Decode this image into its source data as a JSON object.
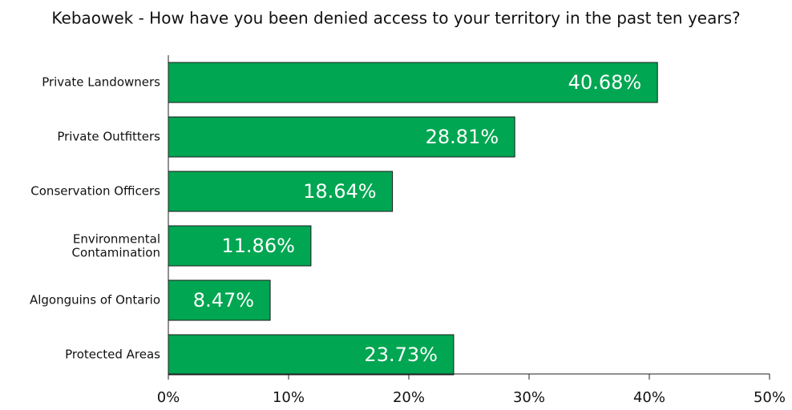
{
  "chart_data": {
    "type": "bar",
    "orientation": "horizontal",
    "title": "Kebaowek - How have you been denied access to your territory in the past ten years?",
    "categories": [
      "Private Landowners",
      "Private Outfitters",
      "Conservation Officers",
      "Environmental\nContamination",
      "Algonguins of Ontario",
      "Protected Areas"
    ],
    "values": [
      40.68,
      28.81,
      18.64,
      11.86,
      8.47,
      23.73
    ],
    "value_labels": [
      "40.68%",
      "28.81%",
      "18.64%",
      "11.86%",
      "8.47%",
      "23.73%"
    ],
    "color": "#00a651",
    "xlim": [
      0,
      50
    ],
    "xticks": [
      {
        "value": 0,
        "label": "0%"
      },
      {
        "value": 10,
        "label": "10%"
      },
      {
        "value": 20,
        "label": "20%"
      },
      {
        "value": 30,
        "label": "30%"
      },
      {
        "value": 40,
        "label": "40%"
      },
      {
        "value": 50,
        "label": "50%"
      }
    ],
    "grid": false
  }
}
